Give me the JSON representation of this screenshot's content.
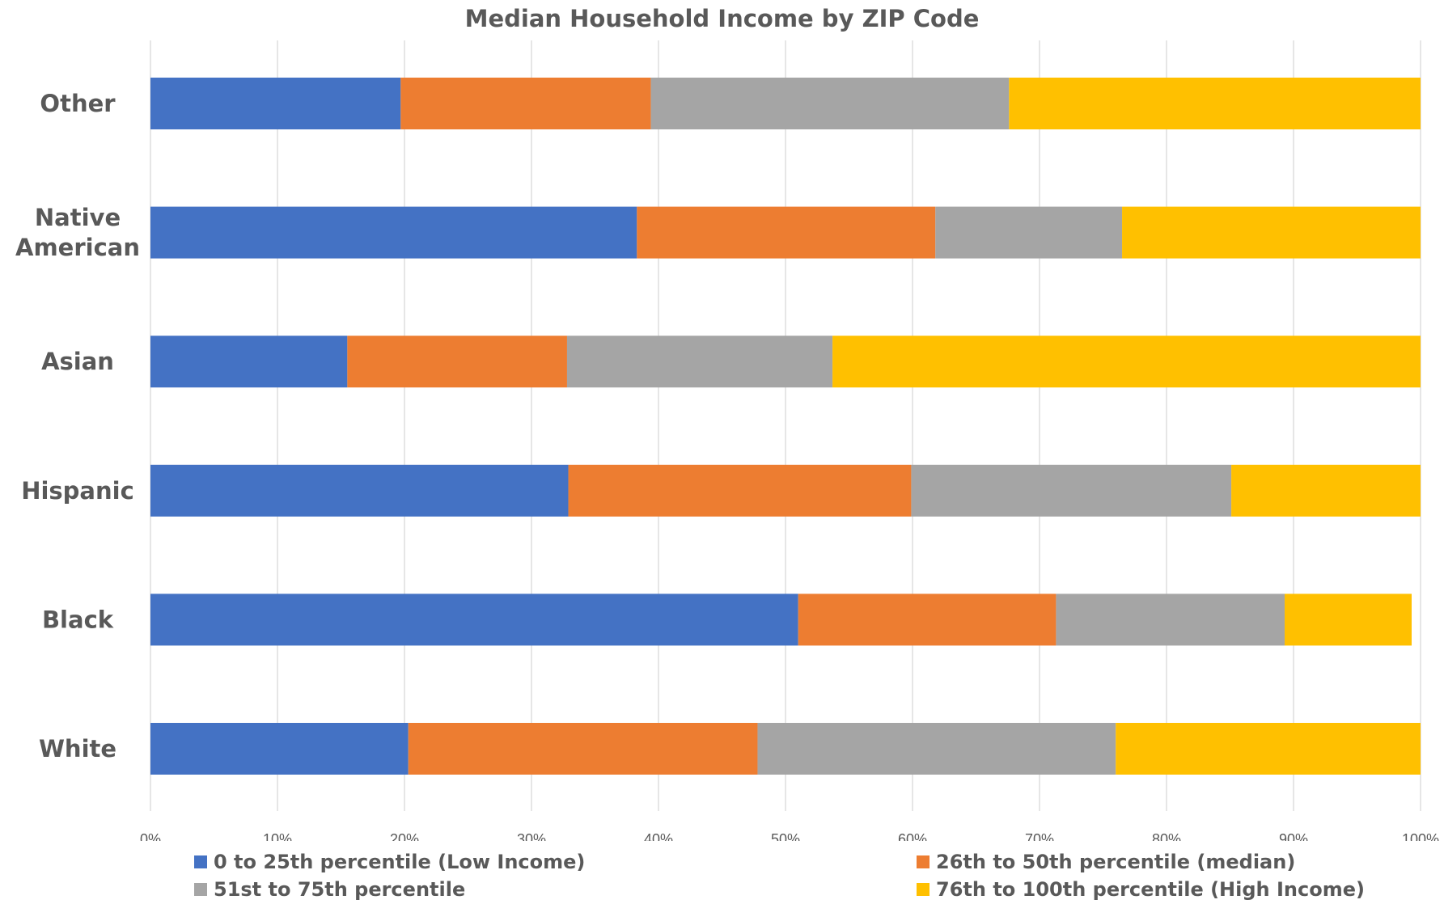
{
  "chart_data": {
    "type": "bar",
    "orientation": "horizontal",
    "stacked": true,
    "title": "Median Household Income by ZIP Code",
    "categories": [
      "Other",
      "Native American",
      "Asian",
      "Hispanic",
      "Black",
      "White"
    ],
    "category_lines": [
      [
        "Other"
      ],
      [
        "Native",
        "American"
      ],
      [
        "Asian"
      ],
      [
        "Hispanic"
      ],
      [
        "Black"
      ],
      [
        "White"
      ]
    ],
    "series": [
      {
        "name": "0 to 25th percentile (Low Income)",
        "color": "#4472C4",
        "values": [
          19.7,
          38.3,
          15.5,
          32.9,
          51.0,
          20.3
        ]
      },
      {
        "name": "26th to 50th percentile (median)",
        "color": "#ED7D31",
        "values": [
          19.7,
          23.5,
          17.3,
          27.0,
          20.3,
          27.5
        ]
      },
      {
        "name": "51st to 75th percentile",
        "color": "#A5A5A5",
        "values": [
          28.2,
          14.7,
          20.9,
          25.2,
          18.0,
          28.2
        ]
      },
      {
        "name": "76th to 100th percentile (High Income)",
        "color": "#FFC000",
        "values": [
          32.4,
          23.5,
          46.3,
          14.9,
          10.0,
          24.0
        ]
      }
    ],
    "xlim": [
      0,
      100
    ],
    "x_ticks": [
      0,
      10,
      20,
      30,
      40,
      50,
      60,
      70,
      80,
      90,
      100
    ],
    "x_tick_labels": [
      "0%",
      "10%",
      "20%",
      "30%",
      "40%",
      "50%",
      "60%",
      "70%",
      "80%",
      "90%",
      "100%"
    ],
    "grid": true,
    "legend_position": "bottom"
  }
}
